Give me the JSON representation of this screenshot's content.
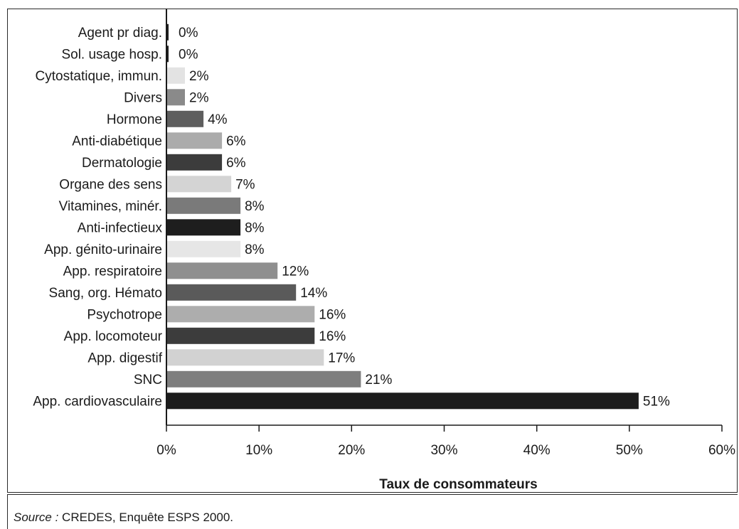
{
  "chart_data": {
    "type": "bar",
    "orientation": "horizontal",
    "categories": [
      "Agent pr diag.",
      "Sol. usage hosp.",
      "Cytostatique, immun.",
      "Divers",
      "Hormone",
      "Anti-diabétique",
      "Dermatologie",
      "Organe des sens",
      "Vitamines, minér.",
      "Anti-infectieux",
      "App. génito-urinaire",
      "App. respiratoire",
      "Sang, org. Hémato",
      "Psychotrope",
      "App. locomoteur",
      "App. digestif",
      "SNC",
      "App. cardiovasculaire"
    ],
    "values": [
      0,
      0,
      2,
      2,
      4,
      6,
      6,
      7,
      8,
      8,
      8,
      12,
      14,
      16,
      16,
      17,
      21,
      51
    ],
    "value_labels": [
      "0%",
      "0%",
      "2%",
      "2%",
      "4%",
      "6%",
      "6%",
      "7%",
      "8%",
      "8%",
      "8%",
      "12%",
      "14%",
      "16%",
      "16%",
      "17%",
      "21%",
      "51%"
    ],
    "bar_colors": [
      "#1e1e1e",
      "#1e1e1e",
      "#e3e3e3",
      "#8a8a8a",
      "#5e5e5e",
      "#ababab",
      "#3c3c3c",
      "#d4d4d4",
      "#7a7a7a",
      "#1e1e1e",
      "#e6e6e6",
      "#8f8f8f",
      "#5a5a5a",
      "#adadad",
      "#3c3c3c",
      "#d2d2d2",
      "#7e7e7e",
      "#1c1c1c"
    ],
    "xlabel": "Taux de consommateurs",
    "xlim": [
      0,
      60
    ],
    "xticks": [
      0,
      10,
      20,
      30,
      40,
      50,
      60
    ],
    "xtick_labels": [
      "0%",
      "10%",
      "20%",
      "30%",
      "40%",
      "50%",
      "60%"
    ],
    "grid": false,
    "legend": "none"
  },
  "source": {
    "label": "Source :",
    "text": " CREDES, Enquête ESPS 2000."
  }
}
